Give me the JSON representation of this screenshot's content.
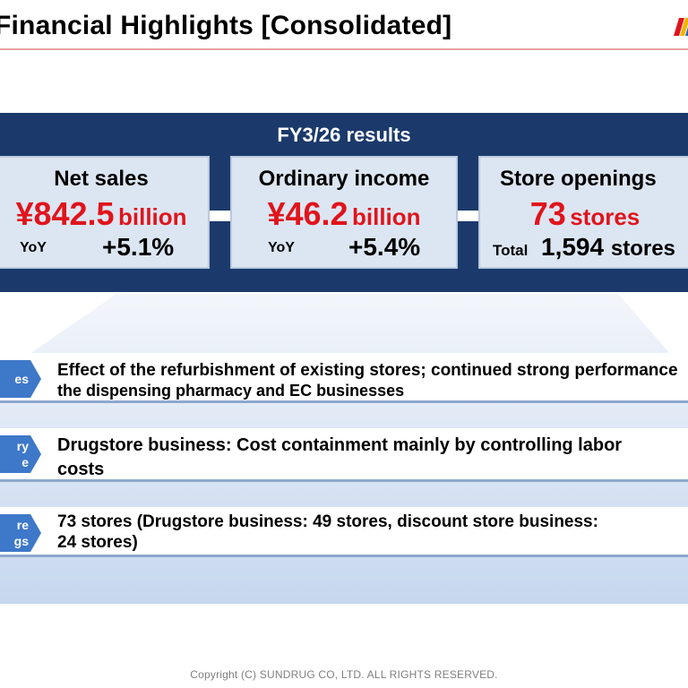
{
  "header": {
    "title": "Financial Highlights [Consolidated]"
  },
  "results": {
    "band_title": "FY3/26 results",
    "cards": [
      {
        "label": "Net sales",
        "value": "¥842.5",
        "unit": "billion",
        "foot_label": "YoY",
        "foot_value": "+5.1%"
      },
      {
        "label": "Ordinary income",
        "value": "¥46.2",
        "unit": "billion",
        "foot_label": "YoY",
        "foot_value": "+5.4%"
      },
      {
        "label": "Store openings",
        "value": "73",
        "unit": "stores",
        "foot_label": "Total",
        "foot_value": "1,594",
        "foot_unit": "stores"
      }
    ]
  },
  "rows": [
    {
      "tag": [
        "es"
      ],
      "lines": [
        "Effect of the refurbishment of existing stores; continued strong performance",
        "the dispensing pharmacy and EC businesses"
      ]
    },
    {
      "tag": [
        "ry",
        "e"
      ],
      "lines": [
        "Drugstore business: Cost containment mainly by controlling labor",
        "costs"
      ]
    },
    {
      "tag": [
        "re",
        "gs"
      ],
      "lines": [
        "73 stores (Drugstore business: 49 stores, discount store business:",
        "24 stores)"
      ]
    }
  ],
  "footer": {
    "copyright": "Copyright (C)  SUNDRUG CO, LTD. ALL RIGHTS RESERVED."
  },
  "colors": {
    "navy": "#1b3a6b",
    "accent_red": "#e0141c",
    "card_bg": "#dce6f2",
    "tag_blue": "#3d78c9"
  }
}
